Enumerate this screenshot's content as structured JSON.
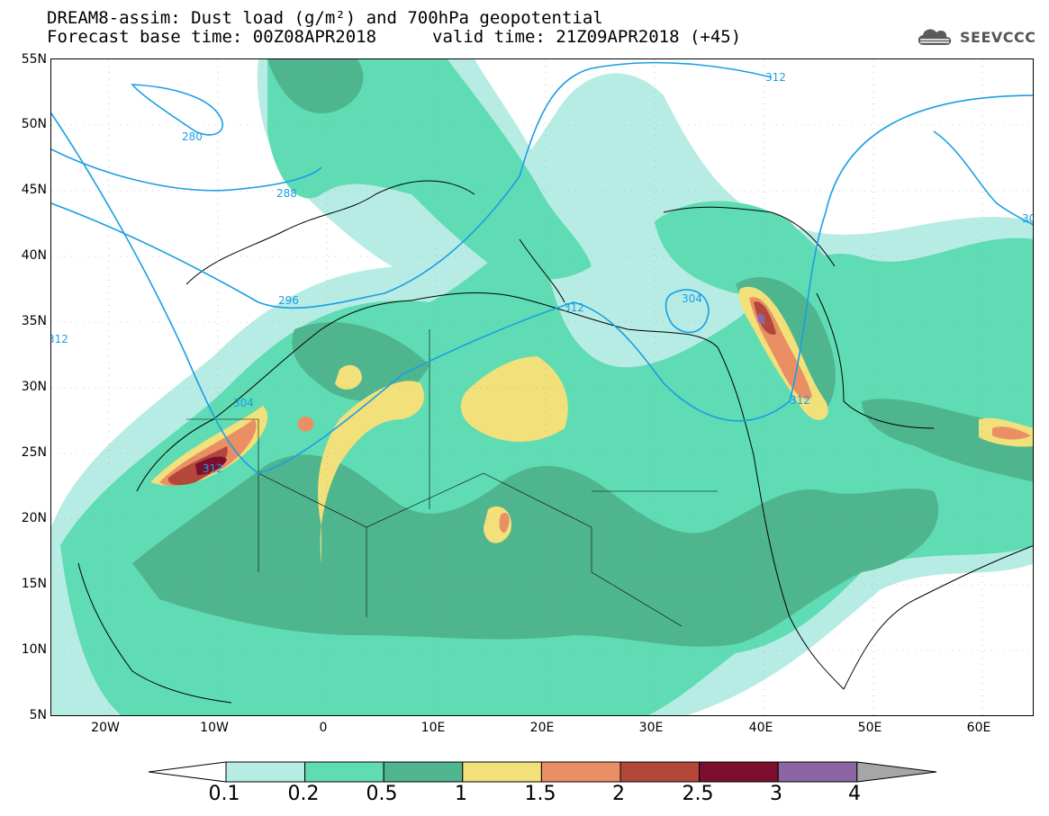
{
  "header": {
    "title_line1": "DREAM8-assim: Dust load (g/m²) and 700hPa geopotential",
    "title_line2": "Forecast base time: 00Z08APR2018",
    "valid_time": "valid time: 21Z09APR2018 (+45)"
  },
  "logo": {
    "text": "SEEVCCC",
    "icon": "cloud-icon"
  },
  "axes": {
    "lat_labels": [
      "55N",
      "50N",
      "45N",
      "40N",
      "35N",
      "30N",
      "25N",
      "20N",
      "15N",
      "10N",
      "5N"
    ],
    "lon_labels": [
      "20W",
      "10W",
      "0",
      "10E",
      "20E",
      "30E",
      "40E",
      "50E",
      "60E"
    ]
  },
  "contours": {
    "labels": [
      "280",
      "288",
      "296",
      "304",
      "312",
      "312",
      "312",
      "304",
      "312",
      "312",
      "30"
    ]
  },
  "legend": {
    "labels": [
      "0.1",
      "0.2",
      "0.5",
      "1",
      "1.5",
      "2",
      "2.5",
      "3",
      "4"
    ],
    "colors": [
      "#b7ece4",
      "#5fdcb4",
      "#4fb58e",
      "#f2e07a",
      "#ea8f65",
      "#b2473a",
      "#7c0f2e",
      "#8c66a3",
      "#a6a6a6"
    ]
  },
  "colors": {
    "land": "#ffffff",
    "ocean": "#ffffff",
    "contour": "#1a9ee5",
    "coast": "#000000"
  }
}
